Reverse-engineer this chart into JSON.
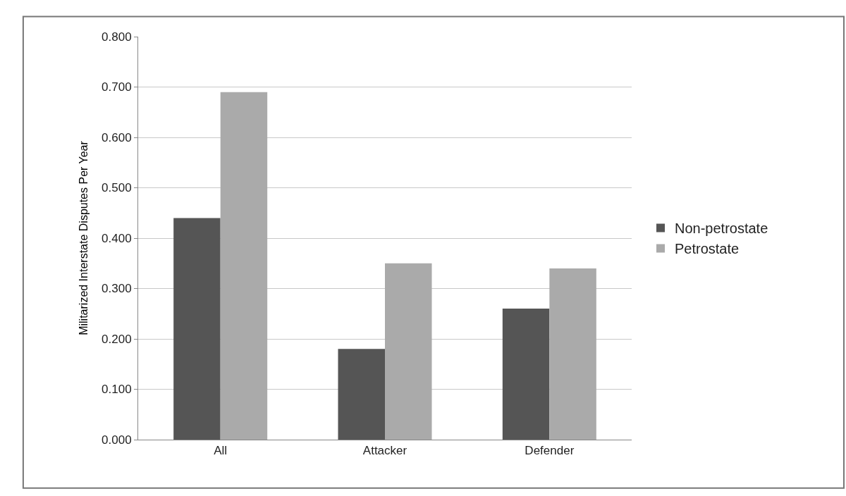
{
  "chart_data": {
    "type": "bar",
    "ylabel": "Militarized Interstate Disputes Per Year",
    "categories": [
      "All",
      "Attacker",
      "Defender"
    ],
    "series": [
      {
        "name": "Non-petrostate",
        "color": "#555555",
        "values": [
          0.44,
          0.18,
          0.26
        ]
      },
      {
        "name": "Petrostate",
        "color": "#aaaaaa",
        "values": [
          0.69,
          0.35,
          0.34
        ]
      }
    ],
    "ylim": [
      0,
      0.8
    ],
    "yticks": [
      {
        "value": 0,
        "label": "0.000"
      },
      {
        "value": 0.1,
        "label": "0.100"
      },
      {
        "value": 0.2,
        "label": "0.200"
      },
      {
        "value": 0.3,
        "label": "0.300"
      },
      {
        "value": 0.4,
        "label": "0.400"
      },
      {
        "value": 0.5,
        "label": "0.500"
      },
      {
        "value": 0.6,
        "label": "0.600"
      },
      {
        "value": 0.7,
        "label": "0.700"
      },
      {
        "value": 0.8,
        "label": "0.800"
      }
    ],
    "grid": "y",
    "legend": "right"
  }
}
